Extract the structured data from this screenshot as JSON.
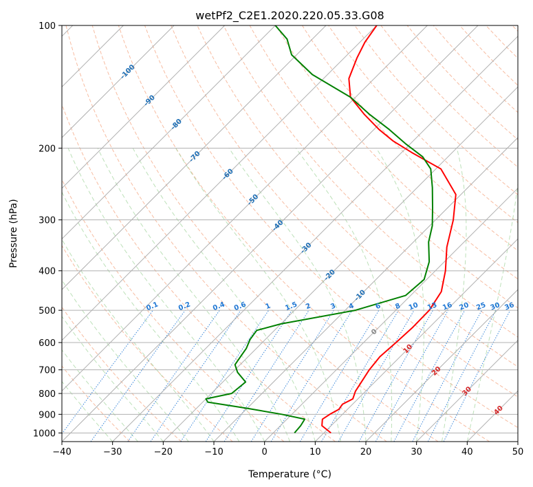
{
  "chart_data": {
    "type": "line",
    "title": "wetPf2_C2E1.2020.220.05.33.G08",
    "xlabel": "Temperature (°C)",
    "ylabel": "Pressure (hPa)",
    "xlim": [
      -40,
      50
    ],
    "ylim": [
      1050,
      100
    ],
    "y_scale": "log",
    "skew": "45-degree skew-T",
    "x_ticks": [
      -40,
      -30,
      -20,
      -10,
      0,
      10,
      20,
      30,
      40,
      50
    ],
    "y_ticks": [
      100,
      200,
      300,
      400,
      500,
      600,
      700,
      800,
      900,
      1000
    ],
    "grid": true,
    "background_lines": {
      "isotherms": "gray solid diagonal lines",
      "dry_adiabats": "salmon dashed",
      "moist_adiabats": "green dashed",
      "mixing_ratio": "blue dotted"
    },
    "mixing_ratio_labels": [
      "0.1",
      "0.2",
      "0.4",
      "0.6",
      "1",
      "1.5",
      "2",
      "3",
      "4",
      "6",
      "8",
      "10",
      "13",
      "16",
      "20",
      "25",
      "30",
      "36"
    ],
    "isotherm_labels": [
      "-100",
      "-90",
      "-80",
      "-70",
      "-60",
      "-50",
      "-40",
      "-30",
      "-20",
      "-10",
      "0",
      "10",
      "20",
      "30",
      "40"
    ],
    "colors": {
      "temperature": "#ff0000",
      "dewpoint": "#008000",
      "isotherm": "#b0b0b0",
      "dry_adiabat": "#f4a582",
      "moist_adiabat": "#a6d6a0",
      "mixing_ratio": "#1f77d4",
      "label_cold": "#1f6fb5",
      "label_zero": "#888888",
      "label_warm": "#d62728"
    },
    "series": [
      {
        "key": "temperature",
        "points": [
          [
            11.4,
            1000
          ],
          [
            8.2,
            960
          ],
          [
            7.0,
            925
          ],
          [
            7.5,
            900
          ],
          [
            8.3,
            875
          ],
          [
            8.0,
            850
          ],
          [
            9.0,
            825
          ],
          [
            8.0,
            790
          ],
          [
            6.5,
            700
          ],
          [
            6.0,
            650
          ],
          [
            6.4,
            600
          ],
          [
            6.7,
            550
          ],
          [
            6.6,
            500
          ],
          [
            5.3,
            450
          ],
          [
            2.0,
            400
          ],
          [
            -2.4,
            350
          ],
          [
            -6.5,
            300
          ],
          [
            -11.0,
            260
          ],
          [
            -19.0,
            225
          ],
          [
            -28.0,
            205
          ],
          [
            -34.0,
            192
          ],
          [
            -39.0,
            180
          ],
          [
            -45.0,
            165
          ],
          [
            -51.0,
            150
          ],
          [
            -55.0,
            135
          ],
          [
            -57.5,
            120
          ],
          [
            -59.0,
            110
          ],
          [
            -60.0,
            100
          ]
        ]
      },
      {
        "key": "dewpoint",
        "points": [
          [
            4.2,
            1000
          ],
          [
            4.0,
            960
          ],
          [
            3.5,
            925
          ],
          [
            -2.0,
            900
          ],
          [
            -10.0,
            870
          ],
          [
            -19.0,
            840
          ],
          [
            -20.0,
            825
          ],
          [
            -16.0,
            800
          ],
          [
            -15.5,
            750
          ],
          [
            -19.0,
            710
          ],
          [
            -21.0,
            680
          ],
          [
            -21.5,
            650
          ],
          [
            -22.0,
            620
          ],
          [
            -23.0,
            590
          ],
          [
            -23.5,
            560
          ],
          [
            -20.0,
            540
          ],
          [
            -8.0,
            500
          ],
          [
            -1.0,
            460
          ],
          [
            -0.5,
            420
          ],
          [
            -3.0,
            380
          ],
          [
            -7.0,
            340
          ],
          [
            -9.5,
            310
          ],
          [
            -13.0,
            280
          ],
          [
            -17.0,
            250
          ],
          [
            -21.0,
            225
          ],
          [
            -25.0,
            210
          ],
          [
            -31.0,
            195
          ],
          [
            -37.0,
            180
          ],
          [
            -44.0,
            165
          ],
          [
            -51.0,
            150
          ],
          [
            -63.0,
            132
          ],
          [
            -71.0,
            118
          ],
          [
            -75.0,
            108
          ],
          [
            -80.0,
            100
          ]
        ]
      }
    ]
  }
}
